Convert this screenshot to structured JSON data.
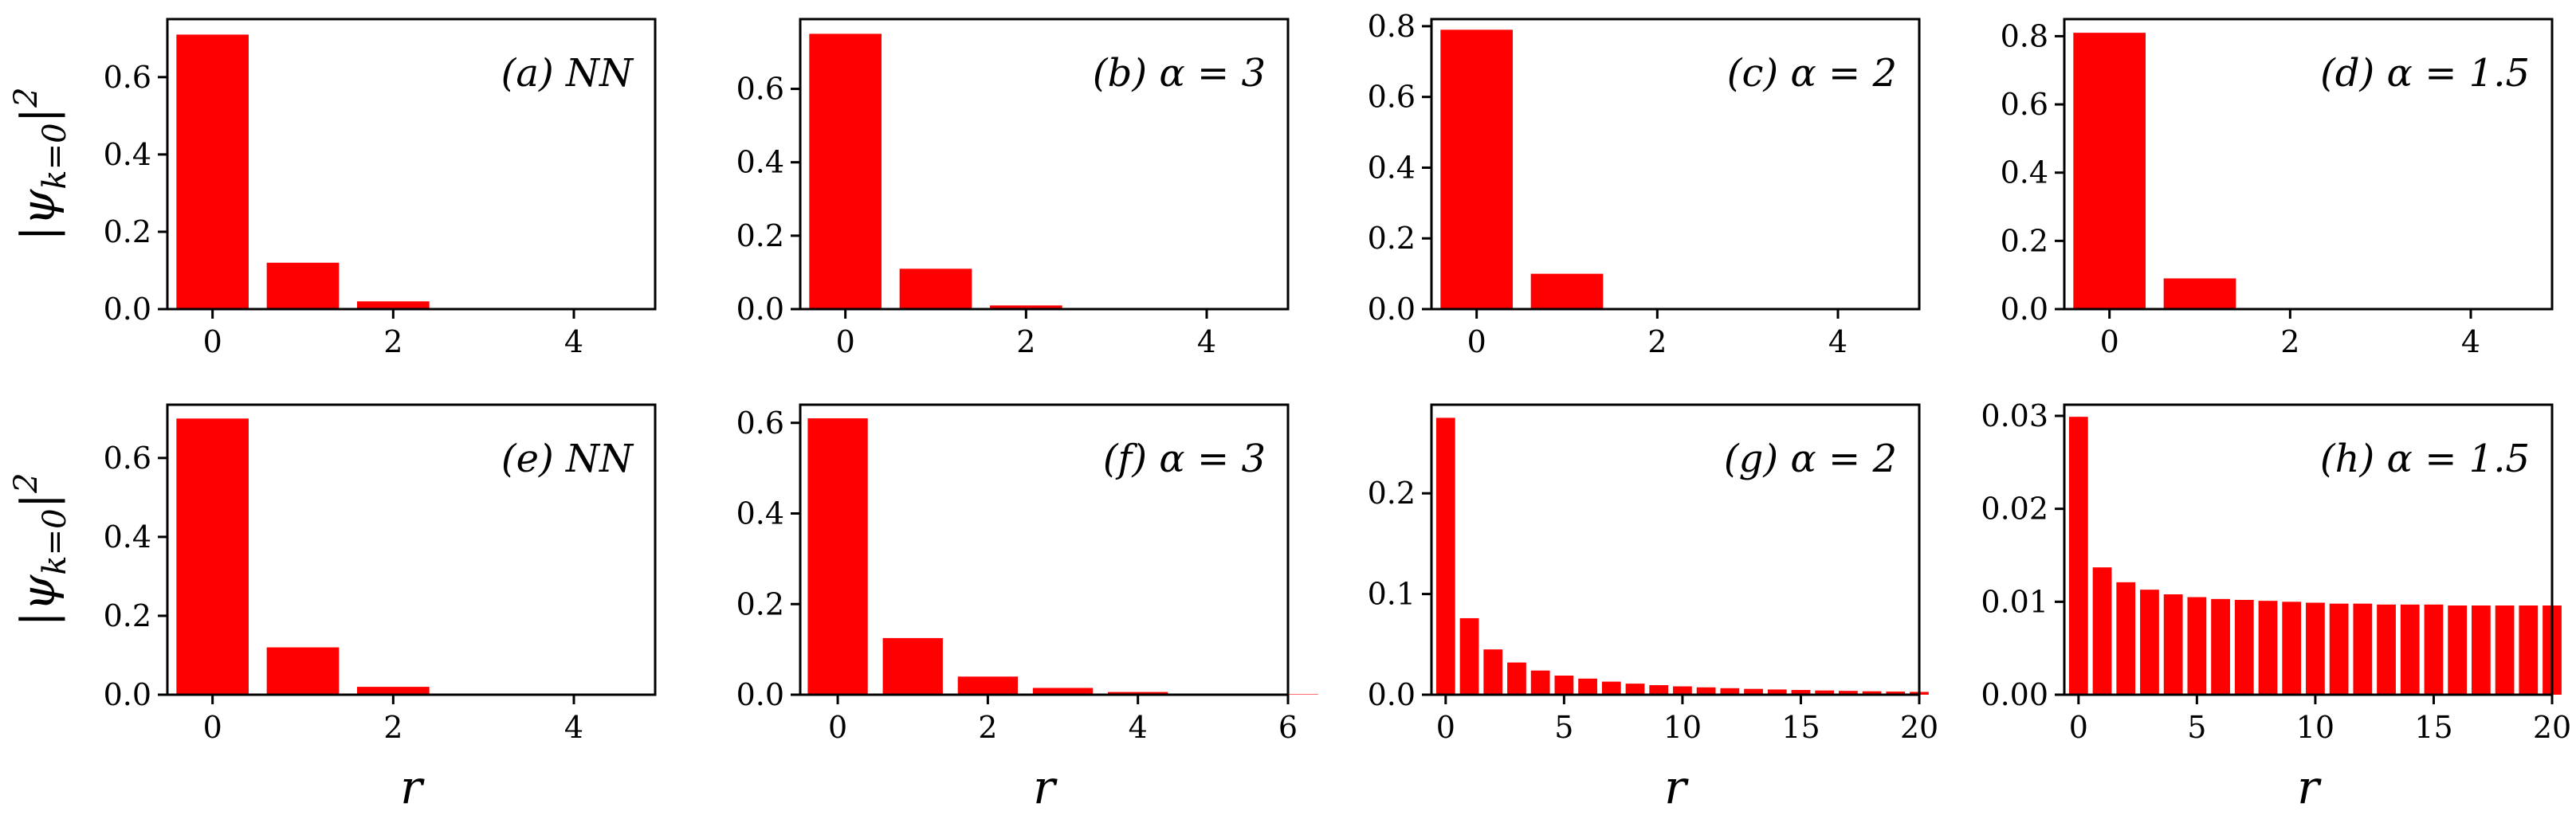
{
  "colors": {
    "bar": "#ff0000",
    "axis": "#000000"
  },
  "ylabel": "|ψ_{k=0}|^2",
  "xlabel": "r",
  "chart_data": [
    {
      "id": "a",
      "type": "bar",
      "annotation": "(a) NN",
      "x": [
        0,
        1,
        2,
        3,
        4
      ],
      "values": [
        0.71,
        0.12,
        0.02,
        0.001,
        0.0
      ],
      "xlim": [
        -0.5,
        4.9
      ],
      "ylim": [
        0,
        0.75
      ],
      "xticks": [
        0,
        2,
        4
      ],
      "yticks": [
        0.0,
        0.2,
        0.4,
        0.6
      ],
      "ytick_labels": [
        "0.0",
        "0.2",
        "0.4",
        "0.6"
      ],
      "ylabel": "|ψ_{k=0}|^2",
      "xlabel": ""
    },
    {
      "id": "b",
      "type": "bar",
      "annotation": "(b) α = 3",
      "x": [
        0,
        1,
        2,
        3,
        4
      ],
      "values": [
        0.75,
        0.11,
        0.01,
        0.001,
        0.0
      ],
      "xlim": [
        -0.5,
        4.9
      ],
      "ylim": [
        0,
        0.79
      ],
      "xticks": [
        0,
        2,
        4
      ],
      "yticks": [
        0.0,
        0.2,
        0.4,
        0.6
      ],
      "ytick_labels": [
        "0.0",
        "0.2",
        "0.4",
        "0.6"
      ],
      "ylabel": "",
      "xlabel": ""
    },
    {
      "id": "c",
      "type": "bar",
      "annotation": "(c) α = 2",
      "x": [
        0,
        1,
        2,
        3,
        4
      ],
      "values": [
        0.79,
        0.1,
        0.002,
        0.0,
        0.0
      ],
      "xlim": [
        -0.5,
        4.9
      ],
      "ylim": [
        0,
        0.82
      ],
      "xticks": [
        0,
        2,
        4
      ],
      "yticks": [
        0.0,
        0.2,
        0.4,
        0.6,
        0.8
      ],
      "ytick_labels": [
        "0.0",
        "0.2",
        "0.4",
        "0.6",
        "0.8"
      ],
      "ylabel": "",
      "xlabel": ""
    },
    {
      "id": "d",
      "type": "bar",
      "annotation": "(d) α = 1.5",
      "x": [
        0,
        1,
        2,
        3,
        4
      ],
      "values": [
        0.81,
        0.09,
        0.001,
        0.0,
        0.0
      ],
      "xlim": [
        -0.5,
        4.9
      ],
      "ylim": [
        0,
        0.85
      ],
      "xticks": [
        0,
        2,
        4
      ],
      "yticks": [
        0.0,
        0.2,
        0.4,
        0.6,
        0.8
      ],
      "ytick_labels": [
        "0.0",
        "0.2",
        "0.4",
        "0.6",
        "0.8"
      ],
      "ylabel": "",
      "xlabel": ""
    },
    {
      "id": "e",
      "type": "bar",
      "annotation": "(e) NN",
      "x": [
        0,
        1,
        2,
        3,
        4
      ],
      "values": [
        0.7,
        0.12,
        0.02,
        0.002,
        0.0
      ],
      "xlim": [
        -0.5,
        4.9
      ],
      "ylim": [
        0,
        0.735
      ],
      "xticks": [
        0,
        2,
        4
      ],
      "yticks": [
        0.0,
        0.2,
        0.4,
        0.6
      ],
      "ytick_labels": [
        "0.0",
        "0.2",
        "0.4",
        "0.6"
      ],
      "ylabel": "|ψ_{k=0}|^2",
      "xlabel": "r"
    },
    {
      "id": "f",
      "type": "bar",
      "annotation": "(f) α = 3",
      "x": [
        0,
        1,
        2,
        3,
        4,
        5,
        6
      ],
      "values": [
        0.61,
        0.125,
        0.04,
        0.015,
        0.006,
        0.002,
        0.001
      ],
      "xlim": [
        -0.5,
        6.0
      ],
      "ylim": [
        0,
        0.64
      ],
      "xticks": [
        0,
        2,
        4,
        6
      ],
      "yticks": [
        0.0,
        0.2,
        0.4,
        0.6
      ],
      "ytick_labels": [
        "0.0",
        "0.2",
        "0.4",
        "0.6"
      ],
      "ylabel": "",
      "xlabel": "r"
    },
    {
      "id": "g",
      "type": "bar",
      "annotation": "(g) α = 2",
      "x": [
        0,
        1,
        2,
        3,
        4,
        5,
        6,
        7,
        8,
        9,
        10,
        11,
        12,
        13,
        14,
        15,
        16,
        17,
        18,
        19,
        20
      ],
      "values": [
        0.275,
        0.076,
        0.045,
        0.032,
        0.024,
        0.019,
        0.016,
        0.013,
        0.011,
        0.0095,
        0.0083,
        0.0073,
        0.0065,
        0.0058,
        0.0052,
        0.0047,
        0.0042,
        0.0038,
        0.0034,
        0.0031,
        0.0028
      ],
      "xlim": [
        -0.6,
        20.0
      ],
      "ylim": [
        0,
        0.288
      ],
      "xticks": [
        0,
        5,
        10,
        15,
        20
      ],
      "yticks": [
        0.0,
        0.1,
        0.2
      ],
      "ytick_labels": [
        "0.0",
        "0.1",
        "0.2"
      ],
      "ylabel": "",
      "xlabel": "r"
    },
    {
      "id": "h",
      "type": "bar",
      "annotation": "(h) α = 1.5",
      "x": [
        0,
        1,
        2,
        3,
        4,
        5,
        6,
        7,
        8,
        9,
        10,
        11,
        12,
        13,
        14,
        15,
        16,
        17,
        18,
        19,
        20
      ],
      "values": [
        0.0299,
        0.0137,
        0.0121,
        0.0113,
        0.0108,
        0.0105,
        0.0103,
        0.0102,
        0.0101,
        0.01,
        0.0099,
        0.0098,
        0.0098,
        0.0097,
        0.0097,
        0.0097,
        0.0096,
        0.0096,
        0.0096,
        0.0096,
        0.0096
      ],
      "xlim": [
        -0.6,
        20.0
      ],
      "ylim": [
        0,
        0.0312
      ],
      "xticks": [
        0,
        5,
        10,
        15,
        20
      ],
      "yticks": [
        0.0,
        0.01,
        0.02,
        0.03
      ],
      "ytick_labels": [
        "0.00",
        "0.01",
        "0.02",
        "0.03"
      ],
      "ylabel": "",
      "xlabel": "r"
    }
  ]
}
